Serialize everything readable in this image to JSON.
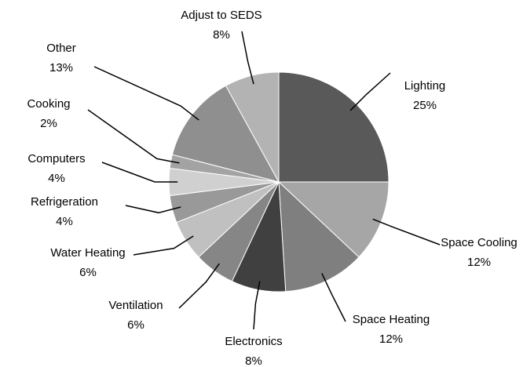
{
  "chart_data": {
    "type": "pie",
    "categories": [
      "Lighting",
      "Space Cooling",
      "Space Heating",
      "Electronics",
      "Ventilation",
      "Water Heating",
      "Refrigeration",
      "Computers",
      "Cooking",
      "Other",
      "Adjust to SEDS"
    ],
    "values": [
      25,
      12,
      12,
      8,
      6,
      6,
      4,
      4,
      2,
      13,
      8
    ],
    "value_labels": [
      "25%",
      "12%",
      "12%",
      "8%",
      "6%",
      "6%",
      "4%",
      "4%",
      "2%",
      "13%",
      "8%"
    ],
    "colors": [
      "#595959",
      "#a6a6a6",
      "#7f7f7f",
      "#404040",
      "#868686",
      "#c0c0c0",
      "#999999",
      "#d0d0d0",
      "#a3a3a3",
      "#8f8f8f",
      "#b3b3b3"
    ]
  }
}
